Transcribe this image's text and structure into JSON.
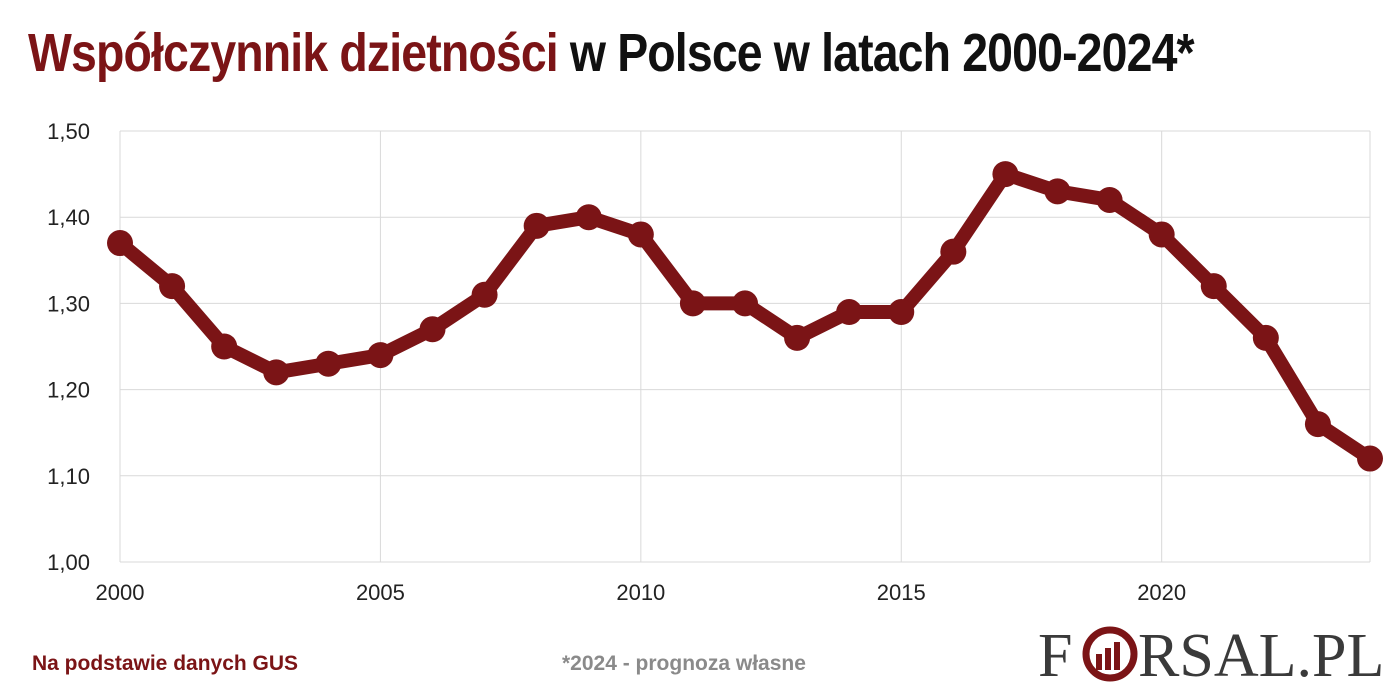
{
  "header": {
    "title_accent": "Współczynnik dzietności",
    "title_rest": " w Polsce w latach 2000-2024*"
  },
  "footer": {
    "source": "Na podstawie danych GUS",
    "note": "*2024 - prognoza własne"
  },
  "logo": {
    "text": "FORSAL.PL",
    "icon": "bar-chart-in-circle-icon"
  },
  "colors": {
    "accent": "#7b1416",
    "grid": "#d9d9d9",
    "footer_note": "#8a8a8a"
  },
  "chart_data": {
    "type": "line",
    "title": "Współczynnik dzietności w Polsce w latach 2000-2024*",
    "xlabel": "",
    "ylabel": "",
    "x": [
      2000,
      2001,
      2002,
      2003,
      2004,
      2005,
      2006,
      2007,
      2008,
      2009,
      2010,
      2011,
      2012,
      2013,
      2014,
      2015,
      2016,
      2017,
      2018,
      2019,
      2020,
      2021,
      2022,
      2023,
      2024
    ],
    "series": [
      {
        "values": [
          1.37,
          1.32,
          1.25,
          1.22,
          1.23,
          1.24,
          1.27,
          1.31,
          1.39,
          1.4,
          1.38,
          1.3,
          1.3,
          1.26,
          1.29,
          1.29,
          1.36,
          1.45,
          1.43,
          1.42,
          1.38,
          1.32,
          1.26,
          1.16,
          1.12
        ],
        "color": "#7b1416"
      }
    ],
    "xlim": [
      2000,
      2024
    ],
    "ylim": [
      1.0,
      1.5
    ],
    "y_ticks": [
      "1,00",
      "1,10",
      "1,20",
      "1,30",
      "1,40",
      "1,50"
    ],
    "x_ticks": [
      "2000",
      "2005",
      "2010",
      "2015",
      "2020"
    ],
    "grid": true,
    "legend": "none"
  }
}
